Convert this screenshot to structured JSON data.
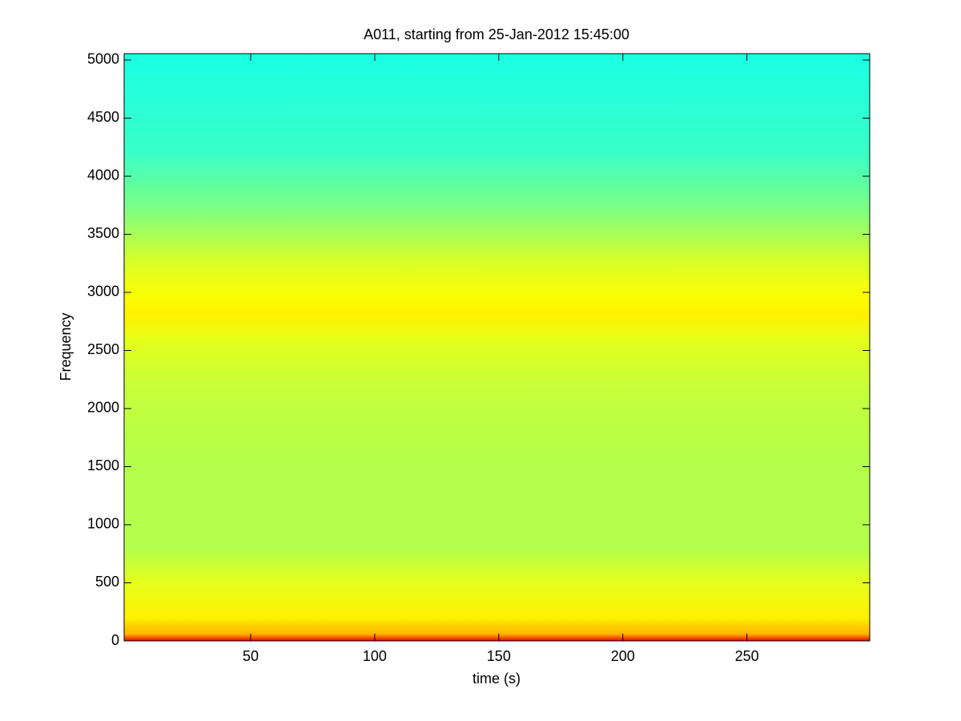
{
  "chart_data": {
    "type": "spectrogram",
    "title": "A011, starting from 25-Jan-2012 15:45:00",
    "x_label": "time (s)",
    "y_label": "Frequency",
    "xlim": [
      -1,
      299.5
    ],
    "ylim": [
      0,
      5055
    ],
    "xticks": [
      50,
      100,
      150,
      200,
      250
    ],
    "yticks": [
      0,
      500,
      1000,
      1500,
      2000,
      2500,
      3000,
      3500,
      4000,
      4500,
      5000
    ],
    "grid": false,
    "colormap": "jet",
    "frequency": [
      0,
      60,
      200,
      500,
      800,
      1500,
      2200,
      2600,
      2800,
      3000,
      3300,
      3700,
      4200,
      5055
    ],
    "level": [
      0.9,
      0.7,
      0.64,
      0.6,
      0.55,
      0.55,
      0.57,
      0.6,
      0.64,
      0.62,
      0.58,
      0.5,
      0.43,
      0.4
    ]
  }
}
